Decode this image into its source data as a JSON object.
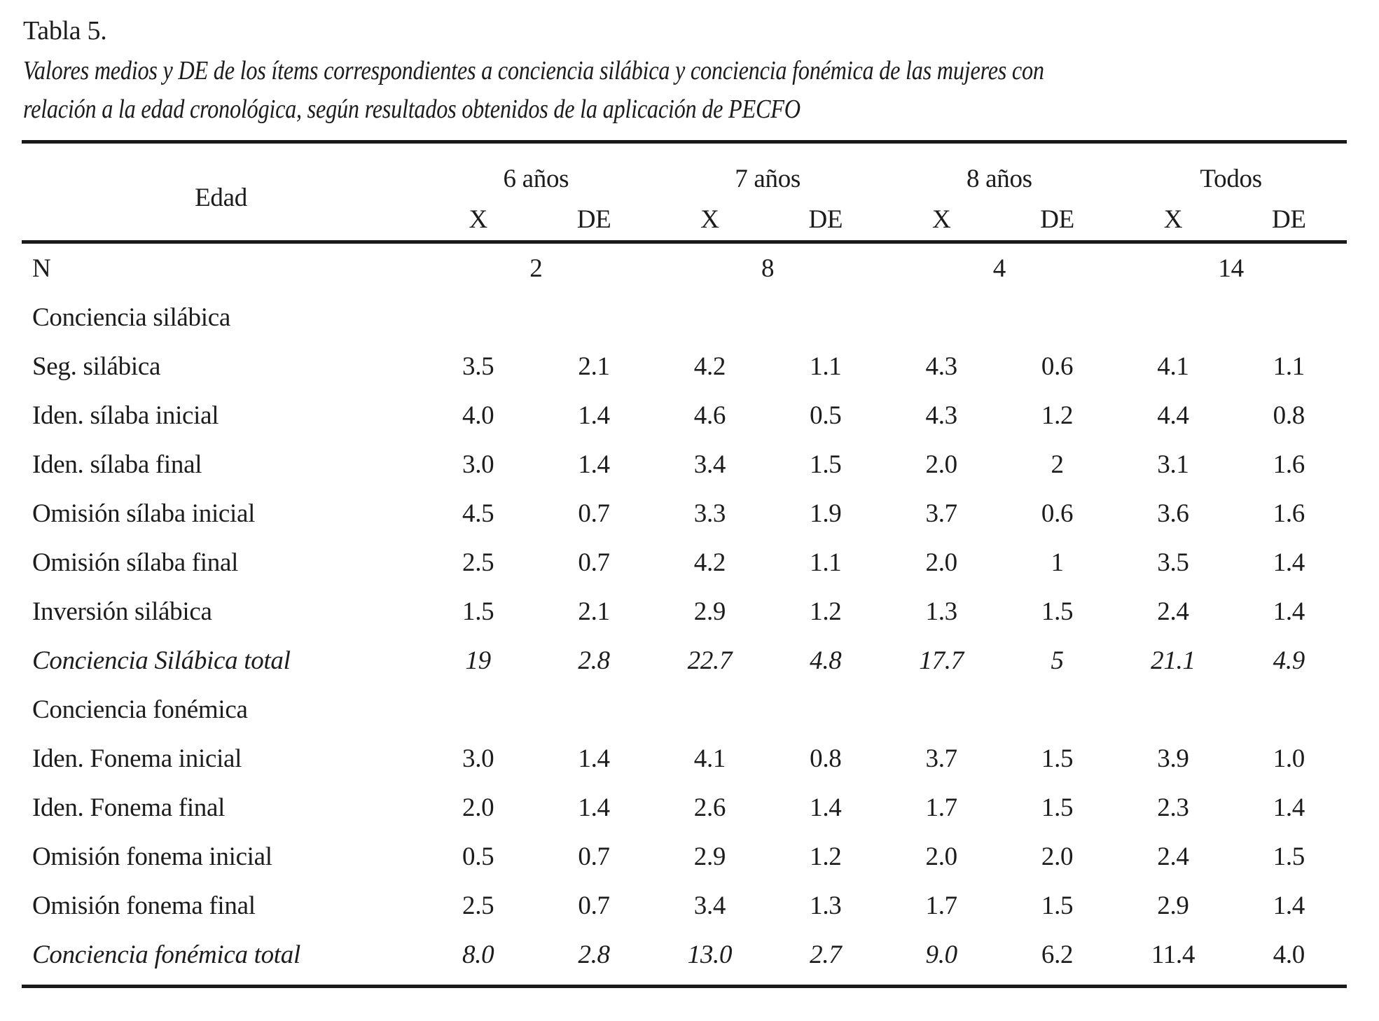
{
  "page": {
    "title": "Tabla 5.",
    "caption_line1": "Valores medios y DE de los ítems correspondientes a conciencia silábica y conciencia fonémica de las mujeres con",
    "caption_line2": "relación a la edad cronológica, según resultados obtenidos de la aplicación de PECFO"
  },
  "table": {
    "corner_label": "Edad",
    "col_groups": [
      "6 años",
      "7 años",
      "8 años",
      "Todos"
    ],
    "sub_headers": [
      "X",
      "DE"
    ],
    "n_row": {
      "label": "N",
      "values": [
        "2",
        "8",
        "4",
        "14"
      ]
    },
    "rows": [
      {
        "label": "Conciencia silábica",
        "type": "section",
        "values": []
      },
      {
        "label": "Seg. silábica",
        "type": "item",
        "values": [
          "3.5",
          "2.1",
          "4.2",
          "1.1",
          "4.3",
          "0.6",
          "4.1",
          "1.1"
        ]
      },
      {
        "label": "Iden. sílaba inicial",
        "type": "item",
        "values": [
          "4.0",
          "1.4",
          "4.6",
          "0.5",
          "4.3",
          "1.2",
          "4.4",
          "0.8"
        ]
      },
      {
        "label": "Iden. sílaba final",
        "type": "item",
        "values": [
          "3.0",
          "1.4",
          "3.4",
          "1.5",
          "2.0",
          "2",
          "3.1",
          "1.6"
        ]
      },
      {
        "label": "Omisión sílaba inicial",
        "type": "item",
        "values": [
          "4.5",
          "0.7",
          "3.3",
          "1.9",
          "3.7",
          "0.6",
          "3.6",
          "1.6"
        ]
      },
      {
        "label": "Omisión sílaba final",
        "type": "item",
        "values": [
          "2.5",
          "0.7",
          "4.2",
          "1.1",
          "2.0",
          "1",
          "3.5",
          "1.4"
        ]
      },
      {
        "label": "Inversión silábica",
        "type": "item",
        "values": [
          "1.5",
          "2.1",
          "2.9",
          "1.2",
          "1.3",
          "1.5",
          "2.4",
          "1.4"
        ]
      },
      {
        "label": "Conciencia Silábica total",
        "type": "total",
        "values": [
          "19",
          "2.8",
          "22.7",
          "4.8",
          "17.7",
          "5",
          "21.1",
          "4.9"
        ]
      },
      {
        "label": "Conciencia fonémica",
        "type": "section",
        "values": []
      },
      {
        "label": "Iden. Fonema inicial",
        "type": "item",
        "values": [
          "3.0",
          "1.4",
          "4.1",
          "0.8",
          "3.7",
          "1.5",
          "3.9",
          "1.0"
        ]
      },
      {
        "label": "Iden. Fonema final",
        "type": "item",
        "values": [
          "2.0",
          "1.4",
          "2.6",
          "1.4",
          "1.7",
          "1.5",
          "2.3",
          "1.4"
        ]
      },
      {
        "label": "Omisión fonema inicial",
        "type": "item",
        "values": [
          "0.5",
          "0.7",
          "2.9",
          "1.2",
          "2.0",
          "2.0",
          "2.4",
          "1.5"
        ]
      },
      {
        "label": "Omisión fonema final",
        "type": "item",
        "values": [
          "2.5",
          "0.7",
          "3.4",
          "1.3",
          "1.7",
          "1.5",
          "2.9",
          "1.4"
        ]
      },
      {
        "label": "Conciencia fonémica total",
        "type": "total",
        "values": [
          "8.0",
          "2.8",
          "13.0",
          "2.7",
          "9.0",
          "6.2",
          "11.4",
          "4.0"
        ],
        "upright_value_indices": [
          5,
          6,
          7
        ]
      }
    ]
  },
  "colors": {
    "text": "#1c1c1c",
    "rule": "#1a1a1a",
    "background": "#ffffff"
  }
}
